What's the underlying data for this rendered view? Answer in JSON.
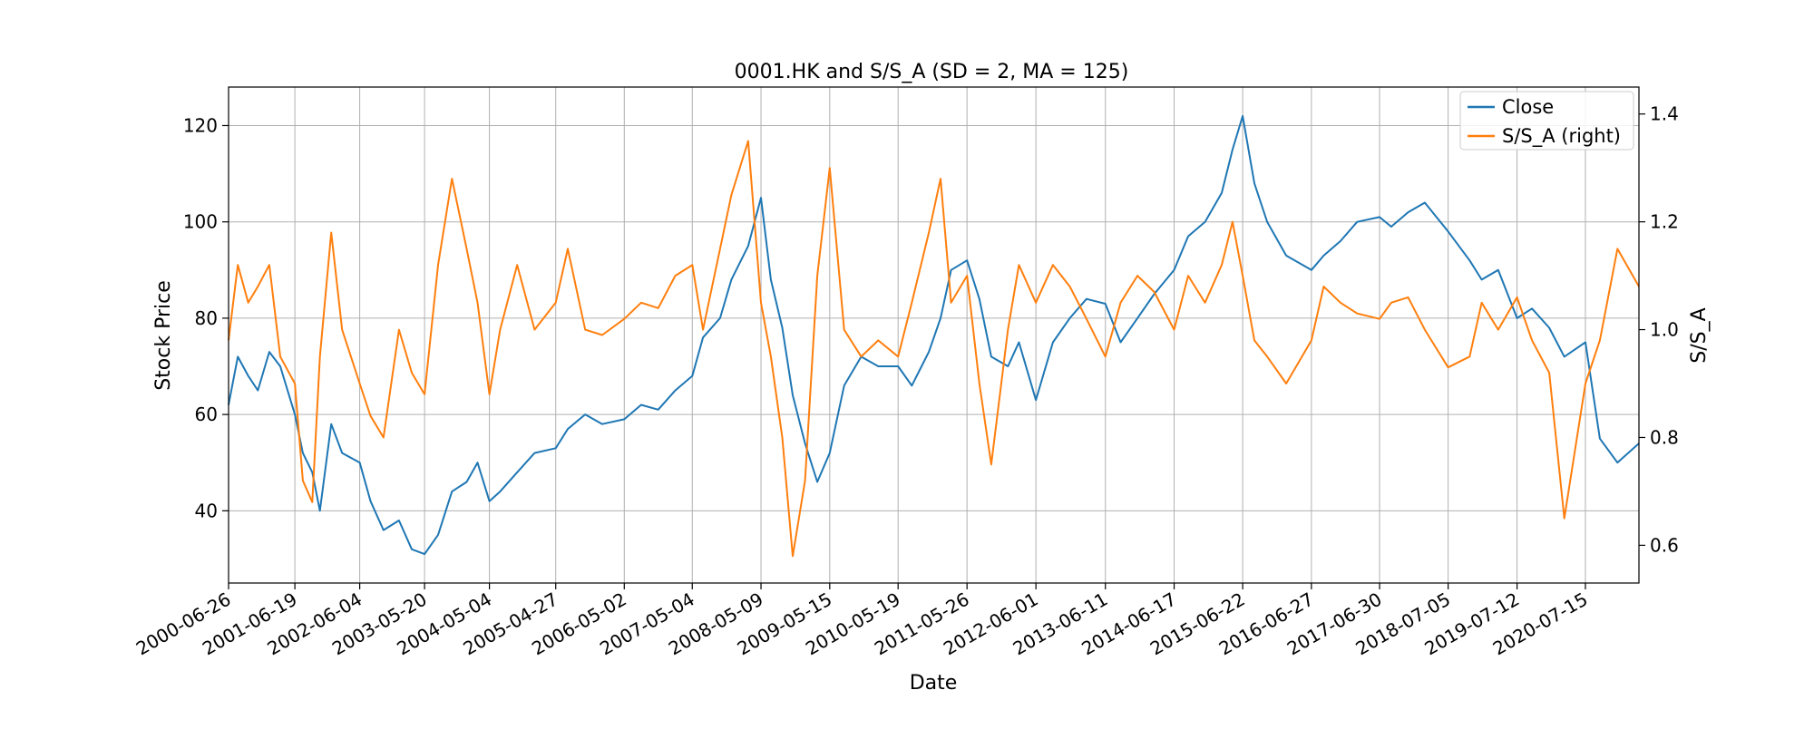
{
  "chart_data": {
    "type": "line",
    "title": "0001.HK and S/S_A (SD = 2, MA = 125)",
    "xlabel": "Date",
    "ylabel_left": "Stock Price",
    "ylabel_right": "S/S_A",
    "grid": true,
    "legend_position": "top-right",
    "x_ticks": [
      "2000-06-26",
      "2001-06-19",
      "2002-06-04",
      "2003-05-20",
      "2004-05-04",
      "2005-04-27",
      "2006-05-02",
      "2007-05-04",
      "2008-05-09",
      "2009-05-15",
      "2010-05-19",
      "2011-05-26",
      "2012-06-01",
      "2013-06-11",
      "2014-06-17",
      "2015-06-22",
      "2016-06-27",
      "2017-06-30",
      "2018-07-05",
      "2019-07-12",
      "2020-07-15"
    ],
    "x_range": [
      "2000-06-26",
      "2021-04-30"
    ],
    "y_left_range": [
      25,
      128
    ],
    "y_left_ticks": [
      40,
      60,
      80,
      100,
      120
    ],
    "y_right_range": [
      0.53,
      1.45
    ],
    "y_right_ticks": [
      0.6,
      0.8,
      1.0,
      1.2,
      1.4
    ],
    "series": [
      {
        "name": "Close",
        "axis": "left",
        "color": "#1f77b4",
        "x": [
          "2000-06-26",
          "2000-08-15",
          "2000-10-10",
          "2000-12-01",
          "2001-02-01",
          "2001-04-01",
          "2001-06-19",
          "2001-08-01",
          "2001-09-21",
          "2001-11-01",
          "2002-01-01",
          "2002-03-01",
          "2002-06-04",
          "2002-08-01",
          "2002-10-10",
          "2003-01-02",
          "2003-03-12",
          "2003-05-20",
          "2003-08-01",
          "2003-10-15",
          "2004-01-02",
          "2004-03-01",
          "2004-05-04",
          "2004-07-01",
          "2004-10-01",
          "2005-01-03",
          "2005-04-27",
          "2005-07-01",
          "2005-10-03",
          "2006-01-03",
          "2006-05-02",
          "2006-08-01",
          "2006-11-01",
          "2007-02-01",
          "2007-05-04",
          "2007-07-01",
          "2007-10-01",
          "2007-12-01",
          "2008-03-01",
          "2008-05-09",
          "2008-07-01",
          "2008-09-01",
          "2008-10-27",
          "2009-01-02",
          "2009-03-09",
          "2009-05-15",
          "2009-08-01",
          "2009-11-01",
          "2010-02-01",
          "2010-05-19",
          "2010-08-01",
          "2010-11-01",
          "2011-01-03",
          "2011-03-01",
          "2011-05-26",
          "2011-08-01",
          "2011-10-04",
          "2012-01-02",
          "2012-03-01",
          "2012-06-01",
          "2012-09-01",
          "2012-12-01",
          "2013-03-01",
          "2013-06-11",
          "2013-09-01",
          "2013-12-01",
          "2014-03-01",
          "2014-06-17",
          "2014-09-01",
          "2014-12-01",
          "2015-03-01",
          "2015-04-28",
          "2015-06-22",
          "2015-08-24",
          "2015-11-01",
          "2016-02-12",
          "2016-06-27",
          "2016-09-01",
          "2016-12-01",
          "2017-03-01",
          "2017-06-30",
          "2017-09-01",
          "2017-12-01",
          "2018-03-01",
          "2018-07-05",
          "2018-10-29",
          "2019-01-02",
          "2019-04-01",
          "2019-07-12",
          "2019-10-01",
          "2020-01-02",
          "2020-03-23",
          "2020-07-15",
          "2020-10-01",
          "2021-01-04",
          "2021-04-30"
        ],
        "values": [
          62,
          72,
          68,
          65,
          73,
          70,
          60,
          52,
          48,
          40,
          58,
          52,
          50,
          42,
          36,
          38,
          32,
          31,
          35,
          44,
          46,
          50,
          42,
          44,
          48,
          52,
          53,
          57,
          60,
          58,
          59,
          62,
          61,
          65,
          68,
          76,
          80,
          88,
          95,
          105,
          88,
          78,
          64,
          54,
          46,
          52,
          66,
          72,
          70,
          70,
          66,
          73,
          80,
          90,
          92,
          84,
          72,
          70,
          75,
          63,
          75,
          80,
          84,
          83,
          75,
          80,
          85,
          90,
          97,
          100,
          106,
          115,
          122,
          108,
          100,
          93,
          90,
          93,
          96,
          100,
          101,
          99,
          102,
          104,
          98,
          92,
          88,
          90,
          80,
          82,
          78,
          72,
          75,
          55,
          50,
          54
        ]
      },
      {
        "name": "S/S_A (right)",
        "axis": "right",
        "color": "#ff7f0e",
        "x": [
          "2000-06-26",
          "2000-08-15",
          "2000-10-10",
          "2000-12-01",
          "2001-02-01",
          "2001-04-01",
          "2001-06-19",
          "2001-08-01",
          "2001-09-21",
          "2001-11-01",
          "2002-01-01",
          "2002-03-01",
          "2002-06-04",
          "2002-08-01",
          "2002-10-10",
          "2003-01-02",
          "2003-03-12",
          "2003-05-20",
          "2003-08-01",
          "2003-10-15",
          "2004-01-02",
          "2004-03-01",
          "2004-05-04",
          "2004-07-01",
          "2004-10-01",
          "2005-01-03",
          "2005-04-27",
          "2005-07-01",
          "2005-10-03",
          "2006-01-03",
          "2006-05-02",
          "2006-08-01",
          "2006-11-01",
          "2007-02-01",
          "2007-05-04",
          "2007-07-01",
          "2007-10-01",
          "2007-12-01",
          "2008-03-01",
          "2008-05-09",
          "2008-07-01",
          "2008-09-01",
          "2008-10-27",
          "2009-01-02",
          "2009-03-09",
          "2009-05-15",
          "2009-08-01",
          "2009-11-01",
          "2010-02-01",
          "2010-05-19",
          "2010-08-01",
          "2010-11-01",
          "2011-01-03",
          "2011-03-01",
          "2011-05-26",
          "2011-08-01",
          "2011-10-04",
          "2012-01-02",
          "2012-03-01",
          "2012-06-01",
          "2012-09-01",
          "2012-12-01",
          "2013-03-01",
          "2013-06-11",
          "2013-09-01",
          "2013-12-01",
          "2014-03-01",
          "2014-06-17",
          "2014-09-01",
          "2014-12-01",
          "2015-03-01",
          "2015-04-28",
          "2015-06-22",
          "2015-08-24",
          "2015-11-01",
          "2016-02-12",
          "2016-06-27",
          "2016-09-01",
          "2016-12-01",
          "2017-03-01",
          "2017-06-30",
          "2017-09-01",
          "2017-12-01",
          "2018-03-01",
          "2018-07-05",
          "2018-10-29",
          "2019-01-02",
          "2019-04-01",
          "2019-07-12",
          "2019-10-01",
          "2020-01-02",
          "2020-03-23",
          "2020-07-15",
          "2020-10-01",
          "2021-01-04",
          "2021-04-30"
        ],
        "values": [
          0.98,
          1.12,
          1.05,
          1.08,
          1.12,
          0.95,
          0.9,
          0.72,
          0.68,
          0.95,
          1.18,
          1.0,
          0.9,
          0.84,
          0.8,
          1.0,
          0.92,
          0.88,
          1.12,
          1.28,
          1.15,
          1.05,
          0.88,
          1.0,
          1.12,
          1.0,
          1.05,
          1.15,
          1.0,
          0.99,
          1.02,
          1.05,
          1.04,
          1.1,
          1.12,
          1.0,
          1.15,
          1.25,
          1.35,
          1.05,
          0.95,
          0.8,
          0.58,
          0.72,
          1.1,
          1.3,
          1.0,
          0.95,
          0.98,
          0.95,
          1.05,
          1.18,
          1.28,
          1.05,
          1.1,
          0.9,
          0.75,
          1.0,
          1.12,
          1.05,
          1.12,
          1.08,
          1.02,
          0.95,
          1.05,
          1.1,
          1.07,
          1.0,
          1.1,
          1.05,
          1.12,
          1.2,
          1.1,
          0.98,
          0.95,
          0.9,
          0.98,
          1.08,
          1.05,
          1.03,
          1.02,
          1.05,
          1.06,
          1.0,
          0.93,
          0.95,
          1.05,
          1.0,
          1.06,
          0.98,
          0.92,
          0.65,
          0.9,
          0.98,
          1.15,
          1.08
        ]
      }
    ]
  }
}
